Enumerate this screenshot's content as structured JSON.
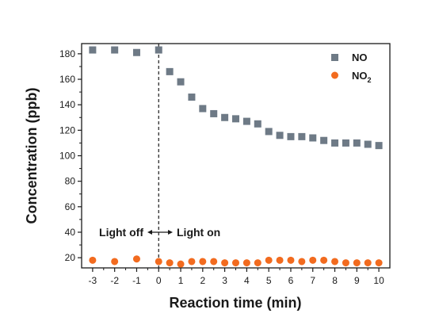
{
  "chart_data": {
    "type": "scatter",
    "xlabel": "Reaction time (min)",
    "ylabel": "Concentration (ppb)",
    "xlim": [
      -3.5,
      10.5
    ],
    "ylim": [
      12,
      188
    ],
    "x_ticks": [
      -3,
      -2,
      -1,
      0,
      1,
      2,
      3,
      4,
      5,
      6,
      7,
      8,
      9,
      10
    ],
    "y_ticks": [
      20,
      40,
      60,
      80,
      100,
      120,
      140,
      160,
      180
    ],
    "series": [
      {
        "name": "NO",
        "color": "#6e7a86",
        "marker": "square",
        "x": [
          -3,
          -2,
          -1,
          0,
          0.5,
          1,
          1.5,
          2,
          2.5,
          3,
          3.5,
          4,
          4.5,
          5,
          5.5,
          6,
          6.5,
          7,
          7.5,
          8,
          8.5,
          9,
          9.5,
          10
        ],
        "y": [
          183,
          183,
          181,
          183,
          166,
          158,
          146,
          137,
          133,
          130,
          129,
          127,
          125,
          119,
          116,
          115,
          115,
          114,
          112,
          110,
          110,
          110,
          109,
          108
        ]
      },
      {
        "name": "NO",
        "name_subscript": "2",
        "color": "#f26b1f",
        "marker": "circle",
        "x": [
          -3,
          -2,
          -1,
          0,
          0.5,
          1,
          1.5,
          2,
          2.5,
          3,
          3.5,
          4,
          4.5,
          5,
          5.5,
          6,
          6.5,
          7,
          7.5,
          8,
          8.5,
          9,
          9.5,
          10
        ],
        "y": [
          18,
          17,
          19,
          17,
          16,
          15,
          17,
          17,
          17,
          16,
          16,
          16,
          16,
          18,
          18,
          18,
          17,
          18,
          18,
          17,
          16,
          16,
          16,
          16
        ]
      }
    ],
    "divider_x": 0,
    "annotations": {
      "left": "Light off",
      "right": "Light on"
    },
    "legend_position": "top-right"
  }
}
